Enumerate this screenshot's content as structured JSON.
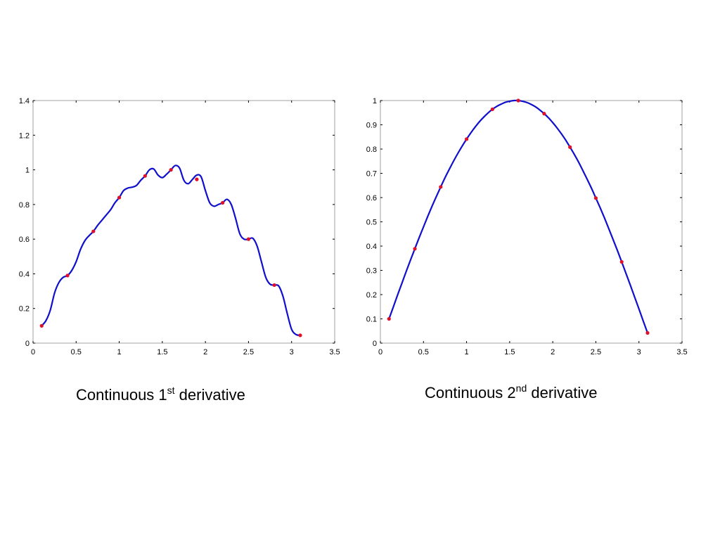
{
  "chart_data": [
    {
      "type": "line",
      "caption": {
        "prefix": "Continuous 1",
        "superscript": "st",
        "suffix": " derivative"
      },
      "xlim": [
        0,
        3.5
      ],
      "ylim": [
        0,
        1.4
      ],
      "xticks": [
        0,
        0.5,
        1,
        1.5,
        2,
        2.5,
        3,
        3.5
      ],
      "xtick_labels": [
        "0",
        "0.5",
        "1",
        "1.5",
        "2",
        "2.5",
        "3",
        "3.5"
      ],
      "yticks": [
        0,
        0.2,
        0.4,
        0.6,
        0.8,
        1,
        1.2,
        1.4
      ],
      "ytick_labels": [
        "0",
        "0.2",
        "0.4",
        "0.6",
        "0.8",
        "1",
        "1.2",
        "1.4"
      ],
      "grid": false,
      "series": [
        {
          "style": "curve",
          "color": "#1010cc",
          "x": [
            0.1,
            0.15,
            0.2,
            0.25,
            0.3,
            0.35,
            0.4,
            0.45,
            0.5,
            0.55,
            0.6,
            0.65,
            0.7,
            0.75,
            0.8,
            0.85,
            0.9,
            0.95,
            1.0,
            1.05,
            1.1,
            1.15,
            1.2,
            1.25,
            1.3,
            1.35,
            1.4,
            1.45,
            1.5,
            1.55,
            1.6,
            1.65,
            1.7,
            1.75,
            1.8,
            1.85,
            1.9,
            1.95,
            2.0,
            2.05,
            2.1,
            2.15,
            2.2,
            2.25,
            2.3,
            2.35,
            2.4,
            2.45,
            2.5,
            2.55,
            2.6,
            2.65,
            2.7,
            2.75,
            2.8,
            2.85,
            2.9,
            2.95,
            3.0,
            3.05,
            3.1
          ],
          "y": [
            0.1,
            0.13,
            0.19,
            0.29,
            0.35,
            0.38,
            0.39,
            0.42,
            0.47,
            0.54,
            0.59,
            0.62,
            0.645,
            0.68,
            0.71,
            0.74,
            0.77,
            0.81,
            0.84,
            0.88,
            0.895,
            0.9,
            0.91,
            0.94,
            0.965,
            1.0,
            1.005,
            0.97,
            0.955,
            0.975,
            1.0,
            1.025,
            1.01,
            0.94,
            0.92,
            0.945,
            0.97,
            0.96,
            0.88,
            0.81,
            0.79,
            0.8,
            0.81,
            0.83,
            0.8,
            0.72,
            0.63,
            0.6,
            0.6,
            0.605,
            0.56,
            0.47,
            0.38,
            0.34,
            0.335,
            0.33,
            0.27,
            0.17,
            0.08,
            0.05,
            0.045
          ]
        },
        {
          "style": "points",
          "color": "#e0102a",
          "x": [
            0.1,
            0.4,
            0.7,
            1.0,
            1.3,
            1.6,
            1.9,
            2.2,
            2.5,
            2.8,
            3.1
          ],
          "y": [
            0.1,
            0.39,
            0.645,
            0.84,
            0.965,
            1.0,
            0.945,
            0.81,
            0.6,
            0.335,
            0.045
          ]
        }
      ]
    },
    {
      "type": "line",
      "caption": {
        "prefix": "Continuous 2",
        "superscript": "nd",
        "suffix": " derivative"
      },
      "xlim": [
        0,
        3.5
      ],
      "ylim": [
        0,
        1
      ],
      "xticks": [
        0,
        0.5,
        1,
        1.5,
        2,
        2.5,
        3,
        3.5
      ],
      "xtick_labels": [
        "0",
        "0.5",
        "1",
        "1.5",
        "2",
        "2.5",
        "3",
        "3.5"
      ],
      "yticks": [
        0,
        0.1,
        0.2,
        0.3,
        0.4,
        0.5,
        0.6,
        0.7,
        0.8,
        0.9,
        1
      ],
      "ytick_labels": [
        "0",
        "0.1",
        "0.2",
        "0.3",
        "0.4",
        "0.5",
        "0.6",
        "0.7",
        "0.8",
        "0.9",
        "1"
      ],
      "grid": false,
      "series": [
        {
          "style": "curve",
          "color": "#1010cc",
          "x": [
            0.1,
            0.15,
            0.2,
            0.25,
            0.3,
            0.35,
            0.4,
            0.45,
            0.5,
            0.55,
            0.6,
            0.65,
            0.7,
            0.75,
            0.8,
            0.85,
            0.9,
            0.95,
            1.0,
            1.05,
            1.1,
            1.15,
            1.2,
            1.25,
            1.3,
            1.35,
            1.4,
            1.45,
            1.5,
            1.55,
            1.6,
            1.65,
            1.7,
            1.75,
            1.8,
            1.85,
            1.9,
            1.95,
            2.0,
            2.05,
            2.1,
            2.15,
            2.2,
            2.25,
            2.3,
            2.35,
            2.4,
            2.45,
            2.5,
            2.55,
            2.6,
            2.65,
            2.7,
            2.75,
            2.8,
            2.85,
            2.9,
            2.95,
            3.0,
            3.05,
            3.1
          ],
          "y": [
            0.1,
            0.149,
            0.199,
            0.247,
            0.296,
            0.343,
            0.389,
            0.435,
            0.479,
            0.523,
            0.565,
            0.605,
            0.644,
            0.682,
            0.717,
            0.751,
            0.783,
            0.813,
            0.841,
            0.867,
            0.891,
            0.913,
            0.932,
            0.949,
            0.964,
            0.976,
            0.985,
            0.993,
            0.997,
            1.0,
            1.0,
            0.997,
            0.992,
            0.984,
            0.974,
            0.961,
            0.946,
            0.929,
            0.909,
            0.887,
            0.863,
            0.837,
            0.808,
            0.778,
            0.746,
            0.711,
            0.675,
            0.638,
            0.598,
            0.558,
            0.516,
            0.472,
            0.427,
            0.382,
            0.335,
            0.287,
            0.239,
            0.19,
            0.141,
            0.091,
            0.042
          ]
        },
        {
          "style": "points",
          "color": "#e0102a",
          "x": [
            0.1,
            0.4,
            0.7,
            1.0,
            1.3,
            1.6,
            1.9,
            2.2,
            2.5,
            2.8,
            3.1
          ],
          "y": [
            0.1,
            0.389,
            0.644,
            0.841,
            0.964,
            1.0,
            0.946,
            0.808,
            0.598,
            0.335,
            0.042
          ]
        }
      ]
    }
  ]
}
